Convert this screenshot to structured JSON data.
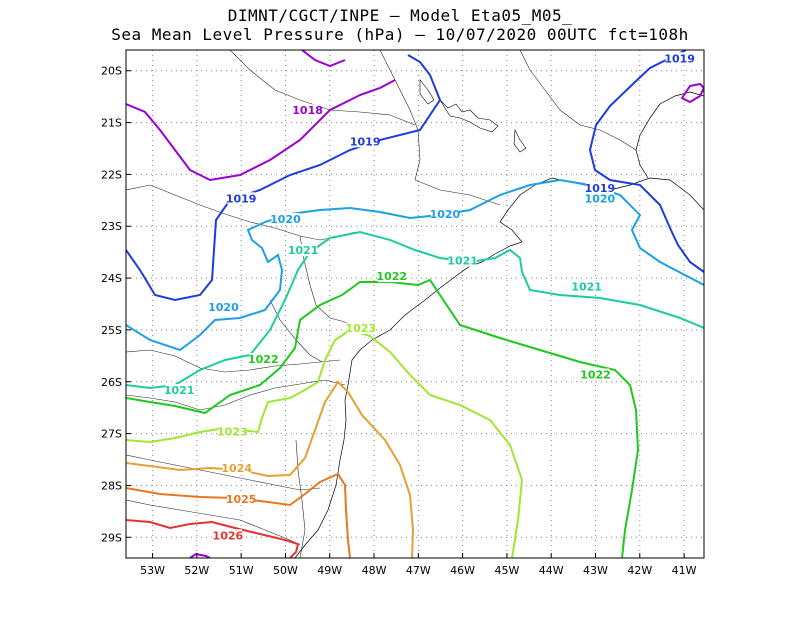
{
  "header": {
    "line1": "DIMNT/CGCT/INPE –  Model Eta05_M05_",
    "line2": "Sea Mean Level Pressure (hPa) – 10/07/2020 00UTC fct=108h"
  },
  "axes": {
    "lat_labels": [
      "20S",
      "21S",
      "22S",
      "23S",
      "24S",
      "25S",
      "26S",
      "27S",
      "28S",
      "29S"
    ],
    "lon_labels": [
      "53W",
      "52W",
      "51W",
      "50W",
      "49W",
      "48W",
      "47W",
      "46W",
      "45W",
      "44W",
      "43W",
      "42W",
      "41W"
    ],
    "lat_range": [
      -29.4,
      -19.6
    ],
    "lon_range": [
      -53.6,
      -40.55
    ]
  },
  "colors": {
    "c1018": "#9a00d2",
    "c1019": "#1e3cdc",
    "c1020": "#1ea0e6",
    "c1021": "#1ecca0",
    "c1022": "#1ec81e",
    "c1023": "#a0e632",
    "c1024": "#e6a032",
    "c1025": "#e6781e",
    "c1026": "#e63232"
  },
  "contour_labels": [
    {
      "text": "1018",
      "lon": -49.5,
      "lat": -20.8,
      "color": "#9a00d2"
    },
    {
      "text": "1019",
      "lon": -48.2,
      "lat": -21.4,
      "color": "#1e3cdc"
    },
    {
      "text": "1019",
      "lon": -41.1,
      "lat": -19.8,
      "color": "#1e3cdc"
    },
    {
      "text": "1019",
      "lon": -42.9,
      "lat": -22.3,
      "color": "#1e3cdc"
    },
    {
      "text": "1019",
      "lon": -51.0,
      "lat": -22.5,
      "color": "#1e3cdc"
    },
    {
      "text": "1020",
      "lon": -50.0,
      "lat": -22.9,
      "color": "#1ea0e6"
    },
    {
      "text": "1020",
      "lon": -46.4,
      "lat": -22.8,
      "color": "#1ea0e6"
    },
    {
      "text": "1020",
      "lon": -42.9,
      "lat": -22.5,
      "color": "#1ea0e6"
    },
    {
      "text": "1020",
      "lon": -51.4,
      "lat": -24.6,
      "color": "#1ea0e6"
    },
    {
      "text": "1021",
      "lon": -49.6,
      "lat": -23.5,
      "color": "#1ecca0"
    },
    {
      "text": "1021",
      "lon": -46.0,
      "lat": -23.7,
      "color": "#1ecca0"
    },
    {
      "text": "1021",
      "lon": -43.2,
      "lat": -24.2,
      "color": "#1ecca0"
    },
    {
      "text": "1021",
      "lon": -52.4,
      "lat": -26.2,
      "color": "#1ecca0"
    },
    {
      "text": "1022",
      "lon": -47.6,
      "lat": -24.0,
      "color": "#1ec81e"
    },
    {
      "text": "1022",
      "lon": -43.0,
      "lat": -25.9,
      "color": "#1ec81e"
    },
    {
      "text": "1022",
      "lon": -50.5,
      "lat": -25.6,
      "color": "#1ec81e"
    },
    {
      "text": "1023",
      "lon": -48.3,
      "lat": -25.0,
      "color": "#a0e632"
    },
    {
      "text": "1023",
      "lon": -51.2,
      "lat": -27.0,
      "color": "#a0e632"
    },
    {
      "text": "1024",
      "lon": -51.1,
      "lat": -27.7,
      "color": "#e6a032"
    },
    {
      "text": "1025",
      "lon": -51.0,
      "lat": -28.3,
      "color": "#e6781e"
    },
    {
      "text": "1026",
      "lon": -51.3,
      "lat": -29.0,
      "color": "#e63232"
    }
  ]
}
